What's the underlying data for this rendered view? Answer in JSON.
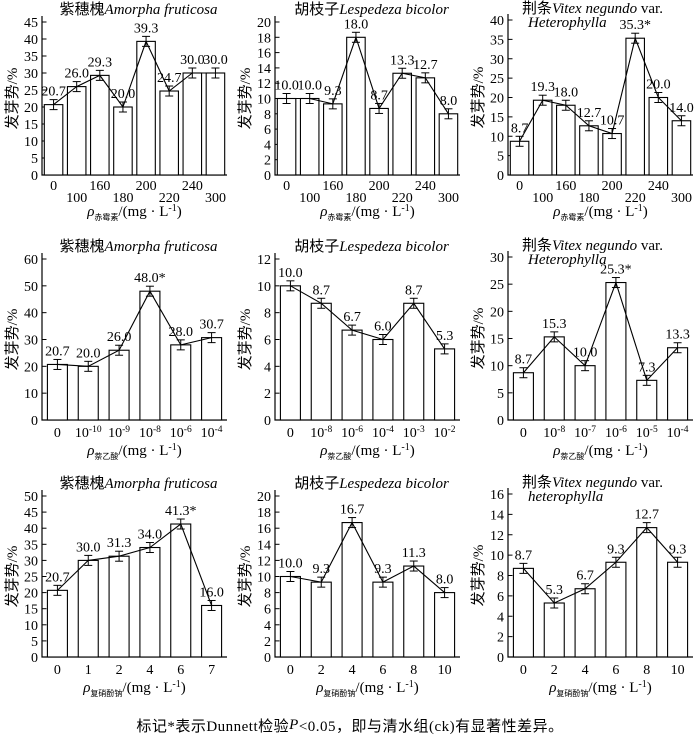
{
  "page": {
    "colors": {
      "bar_fill": "#ffffff",
      "stroke": "#000000",
      "text": "#000000"
    },
    "footer": {
      "prefix": "标记*表示Dunnett检验",
      "p_italic": "P",
      "suffix": "<0.05，即与清水组(ck)有显著性差异。"
    }
  },
  "chart_data": [
    {
      "type": "bar+line",
      "title": {
        "cn": "紫穗槐",
        "latin": "Amorpha fruticosa",
        "var_suffix": "",
        "line2": ""
      },
      "ylabel": "发芽势/%",
      "ylim": [
        0,
        45
      ],
      "ystep": 5,
      "grid": false,
      "stagger": true,
      "x_label": {
        "symbol": "ρ",
        "sub": "赤霉素",
        "rest": "/(mg · L^-1)"
      },
      "categories": [
        "0",
        "100",
        "160",
        "180",
        "200",
        "220",
        "240",
        "300"
      ],
      "values": [
        20.7,
        26.0,
        29.3,
        20.0,
        39.3,
        24.7,
        30.0,
        30.0
      ],
      "labels": [
        "20.7",
        "26.0",
        "29.3",
        "20.0",
        "39.3",
        "24.7",
        "30.0",
        "30.0"
      ]
    },
    {
      "type": "bar+line",
      "title": {
        "cn": "胡枝子",
        "latin": "Lespedeza bicolor",
        "var_suffix": "",
        "line2": ""
      },
      "ylabel": "发芽势/%",
      "ylim": [
        0,
        20
      ],
      "ystep": 2,
      "grid": false,
      "stagger": true,
      "x_label": {
        "symbol": "ρ",
        "sub": "赤霉素",
        "rest": "/(mg · L^-1)"
      },
      "categories": [
        "0",
        "100",
        "160",
        "180",
        "200",
        "220",
        "240",
        "300"
      ],
      "values": [
        10.0,
        10.0,
        9.3,
        18.0,
        8.7,
        13.3,
        12.7,
        8.0
      ],
      "labels": [
        "10.0",
        "10.0",
        "9.3",
        "18.0",
        "8.7",
        "13.3",
        "12.7",
        "8.0"
      ]
    },
    {
      "type": "bar+line",
      "title": {
        "cn": "荆条",
        "latin": "Vitex negundo",
        "var_suffix": " var.",
        "line2": "Heterophylla"
      },
      "ylabel": "发芽势/%",
      "ylim": [
        0,
        40
      ],
      "ystep": 5,
      "grid": false,
      "stagger": true,
      "x_label": {
        "symbol": "ρ",
        "sub": "赤霉素",
        "rest": "/(mg · L^-1)"
      },
      "categories": [
        "0",
        "100",
        "160",
        "180",
        "200",
        "220",
        "240",
        "300"
      ],
      "values": [
        8.7,
        19.3,
        18.0,
        12.7,
        10.7,
        35.3,
        20.0,
        14.0
      ],
      "labels": [
        "8.7",
        "19.3",
        "18.0",
        "12.7",
        "10.7",
        "35.3*",
        "20.0",
        "14.0"
      ]
    },
    {
      "type": "bar+line",
      "title": {
        "cn": "紫穗槐",
        "latin": "Amorpha fruticosa",
        "var_suffix": "",
        "line2": ""
      },
      "ylabel": "发芽势/%",
      "ylim": [
        0,
        60
      ],
      "ystep": 10,
      "grid": false,
      "stagger": false,
      "x_label": {
        "symbol": "ρ",
        "sub": "萘乙酸",
        "rest": "/(mg · L^-1)"
      },
      "categories": [
        "0",
        "10^-10",
        "10^-9",
        "10^-8",
        "10^-6",
        "10^-4"
      ],
      "values": [
        20.7,
        20.0,
        26.0,
        48.0,
        28.0,
        30.7
      ],
      "labels": [
        "20.7",
        "20.0",
        "26.0",
        "48.0*",
        "28.0",
        "30.7"
      ]
    },
    {
      "type": "bar+line",
      "title": {
        "cn": "胡枝子",
        "latin": "Lespedeza bicolor",
        "var_suffix": "",
        "line2": ""
      },
      "ylabel": "发芽势/%",
      "ylim": [
        0,
        12
      ],
      "ystep": 2,
      "grid": false,
      "stagger": false,
      "x_label": {
        "symbol": "ρ",
        "sub": "萘乙酸",
        "rest": "/(mg · L^-1)"
      },
      "categories": [
        "0",
        "10^-8",
        "10^-6",
        "10^-4",
        "10^-3",
        "10^-2"
      ],
      "values": [
        10.0,
        8.7,
        6.7,
        6.0,
        8.7,
        5.3
      ],
      "labels": [
        "10.0",
        "8.7",
        "6.7",
        "6.0",
        "8.7",
        "5.3"
      ]
    },
    {
      "type": "bar+line",
      "title": {
        "cn": "荆条",
        "latin": "Vitex negundo",
        "var_suffix": " var.",
        "line2": "Heterophylla"
      },
      "ylabel": "发芽势/%",
      "ylim": [
        0,
        30
      ],
      "ystep": 5,
      "grid": false,
      "stagger": false,
      "x_label": {
        "symbol": "ρ",
        "sub": "萘乙酸",
        "rest": "/(mg · L^-1)"
      },
      "categories": [
        "0",
        "10^-8",
        "10^-7",
        "10^-6",
        "10^-5",
        "10^-4"
      ],
      "values": [
        8.7,
        15.3,
        10.0,
        25.3,
        7.3,
        13.3
      ],
      "labels": [
        "8.7",
        "15.3",
        "10.0",
        "25.3*",
        "7.3",
        "13.3"
      ]
    },
    {
      "type": "bar+line",
      "title": {
        "cn": "紫穗槐",
        "latin": "Amorpha fruticosa",
        "var_suffix": "",
        "line2": ""
      },
      "ylabel": "发芽势/%",
      "ylim": [
        0,
        50
      ],
      "ystep": 5,
      "grid": false,
      "stagger": false,
      "x_label": {
        "symbol": "ρ",
        "sub": "复硝酚钠",
        "rest": "/(mg · L^-1)"
      },
      "categories": [
        "0",
        "1",
        "2",
        "4",
        "6",
        "7"
      ],
      "values": [
        20.7,
        30.0,
        31.3,
        34.0,
        41.3,
        16.0
      ],
      "labels": [
        "20.7",
        "30.0",
        "31.3",
        "34.0",
        "41.3*",
        "16.0"
      ]
    },
    {
      "type": "bar+line",
      "title": {
        "cn": "胡枝子",
        "latin": "Lespedeza bicolor",
        "var_suffix": "",
        "line2": ""
      },
      "ylabel": "发芽势/%",
      "ylim": [
        0,
        20
      ],
      "ystep": 2,
      "grid": false,
      "stagger": false,
      "x_label": {
        "symbol": "ρ",
        "sub": "复硝酚钠",
        "rest": "/(mg · L^-1)"
      },
      "categories": [
        "0",
        "2",
        "4",
        "6",
        "8",
        "10"
      ],
      "values": [
        10.0,
        9.3,
        16.7,
        9.3,
        11.3,
        8.0
      ],
      "labels": [
        "10.0",
        "9.3",
        "16.7",
        "9.3",
        "11.3",
        "8.0"
      ]
    },
    {
      "type": "bar+line",
      "title": {
        "cn": "荆条",
        "latin": "Vitex negundo",
        "var_suffix": " var.",
        "line2": "heterophylla"
      },
      "ylabel": "发芽势/%",
      "ylim": [
        0,
        16
      ],
      "ystep": 2,
      "grid": false,
      "stagger": false,
      "x_label": {
        "symbol": "ρ",
        "sub": "复硝酚钠",
        "rest": "/(mg · L^-1)"
      },
      "categories": [
        "0",
        "2",
        "4",
        "6",
        "8",
        "10"
      ],
      "values": [
        8.7,
        5.3,
        6.7,
        9.3,
        12.7,
        9.3
      ],
      "labels": [
        "8.7",
        "5.3",
        "6.7",
        "9.3",
        "12.7",
        "9.3"
      ]
    }
  ]
}
